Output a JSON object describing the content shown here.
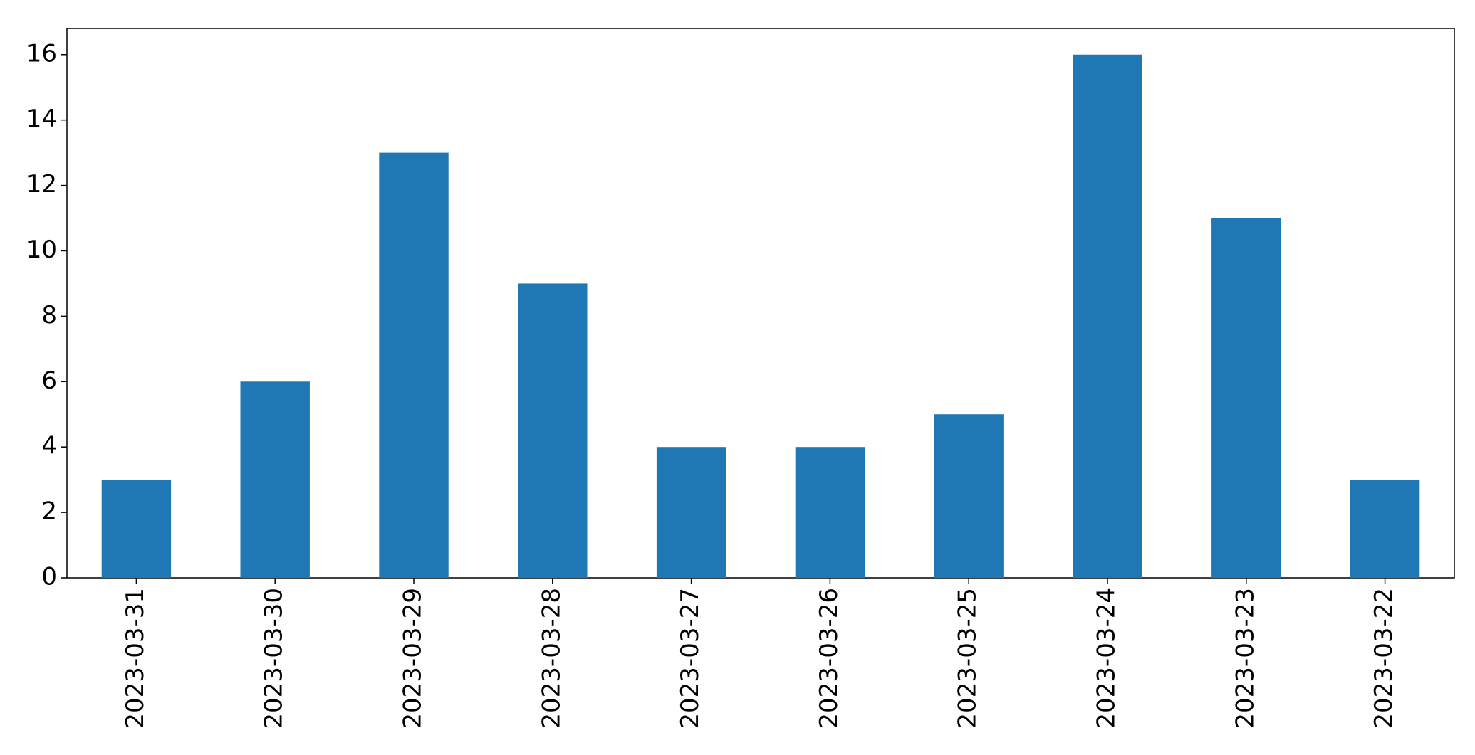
{
  "chart_data": {
    "type": "bar",
    "categories": [
      "2023-03-31",
      "2023-03-30",
      "2023-03-29",
      "2023-03-28",
      "2023-03-27",
      "2023-03-26",
      "2023-03-25",
      "2023-03-24",
      "2023-03-23",
      "2023-03-22"
    ],
    "values": [
      3,
      6,
      13,
      9,
      4,
      4,
      5,
      16,
      11,
      3
    ],
    "color": "#1f77b4",
    "ylim": [
      0,
      16.8
    ],
    "yticks": [
      0,
      2,
      4,
      6,
      8,
      10,
      12,
      14,
      16
    ],
    "grid": false
  }
}
